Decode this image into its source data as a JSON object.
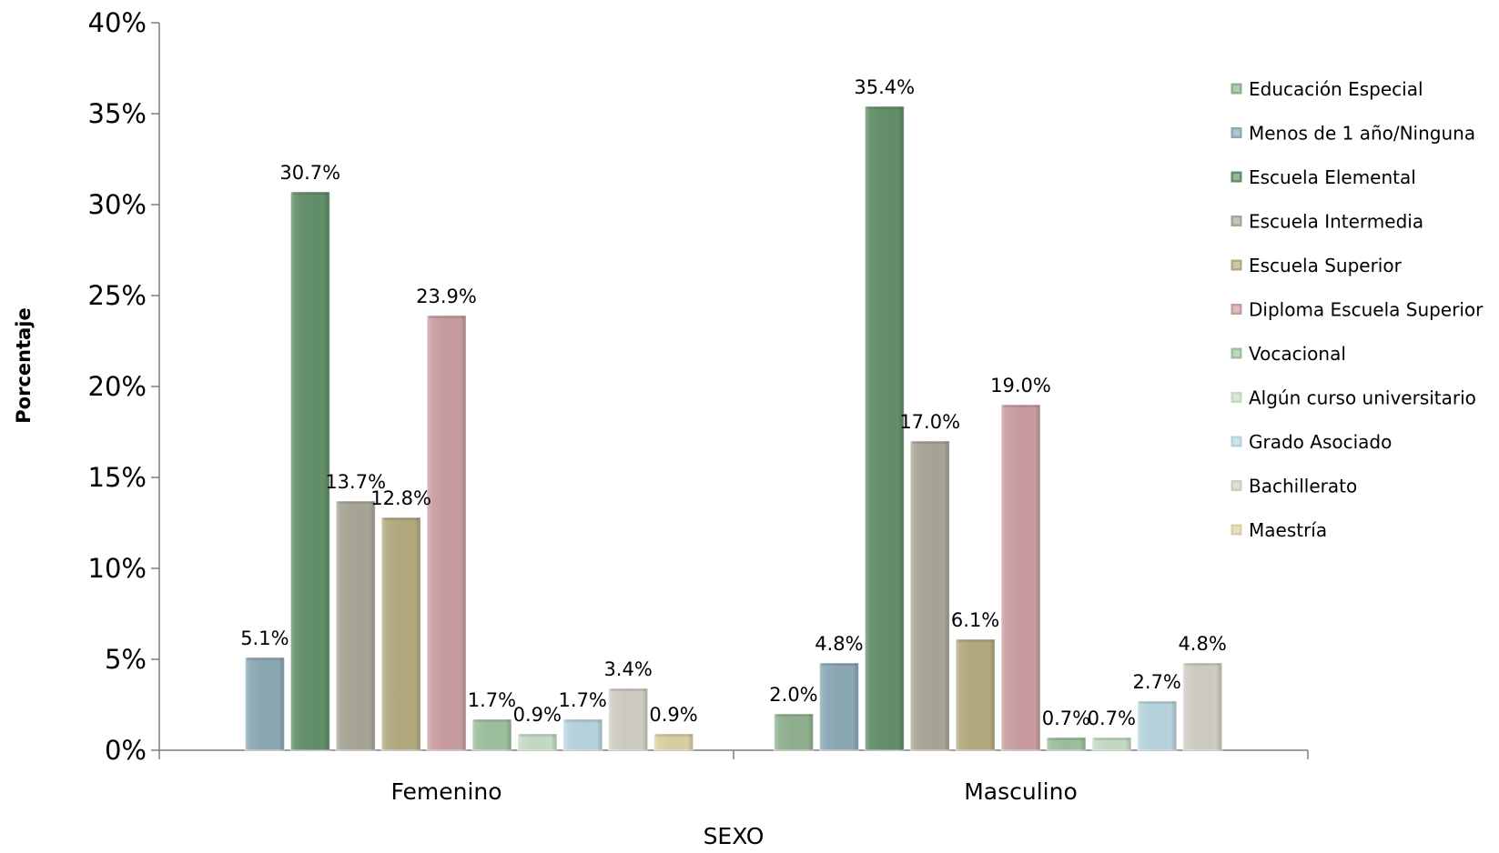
{
  "chart_data": {
    "type": "bar",
    "ylabel": "Porcentaje",
    "xlabel": "SEXO",
    "ylim": [
      0,
      40
    ],
    "yticks": [
      0,
      5,
      10,
      15,
      20,
      25,
      30,
      35,
      40
    ],
    "ytick_labels": [
      "0%",
      "5%",
      "10%",
      "15%",
      "20%",
      "25%",
      "30%",
      "35%",
      "40%"
    ],
    "grid": false,
    "legend_position": "right",
    "categories": [
      "Femenino",
      "Masculino"
    ],
    "series": [
      {
        "name": "Educación Especial",
        "color": "#8fb08f",
        "values": [
          null,
          2.0
        ],
        "labels": [
          "",
          "2.0%"
        ]
      },
      {
        "name": "Menos de 1 año/Ninguna",
        "color": "#8ba8b5",
        "values": [
          5.1,
          4.8
        ],
        "labels": [
          "5.1%",
          "4.8%"
        ]
      },
      {
        "name": "Escuela Elemental",
        "color": "#628f69",
        "values": [
          30.7,
          35.4
        ],
        "labels": [
          "30.7%",
          "35.4%"
        ]
      },
      {
        "name": "Escuela Intermedia",
        "color": "#a8a596",
        "values": [
          13.7,
          17.0
        ],
        "labels": [
          "13.7%",
          "17.0%"
        ]
      },
      {
        "name": "Escuela Superior",
        "color": "#b3a97f",
        "values": [
          12.8,
          6.1
        ],
        "labels": [
          "12.8%",
          "6.1%"
        ]
      },
      {
        "name": "Diploma Escuela Superior",
        "color": "#c99da0",
        "values": [
          23.9,
          19.0
        ],
        "labels": [
          "23.9%",
          "19.0%"
        ]
      },
      {
        "name": "Vocacional",
        "color": "#9cbf9c",
        "values": [
          1.7,
          0.7
        ],
        "labels": [
          "1.7%",
          "0.7%"
        ]
      },
      {
        "name": "Algún curso universitario",
        "color": "#c4dac4",
        "values": [
          0.9,
          0.7
        ],
        "labels": [
          "0.9%",
          "0.7%"
        ]
      },
      {
        "name": "Grado Asociado",
        "color": "#b6d3dd",
        "values": [
          1.7,
          2.7
        ],
        "labels": [
          "1.7%",
          "2.7%"
        ]
      },
      {
        "name": "Bachillerato",
        "color": "#cfccc2",
        "values": [
          3.4,
          4.8
        ],
        "labels": [
          "3.4%",
          "4.8%"
        ]
      },
      {
        "name": "Maestría",
        "color": "#d8cfa3",
        "values": [
          0.9,
          null
        ],
        "labels": [
          "0.9%",
          ""
        ]
      }
    ]
  }
}
